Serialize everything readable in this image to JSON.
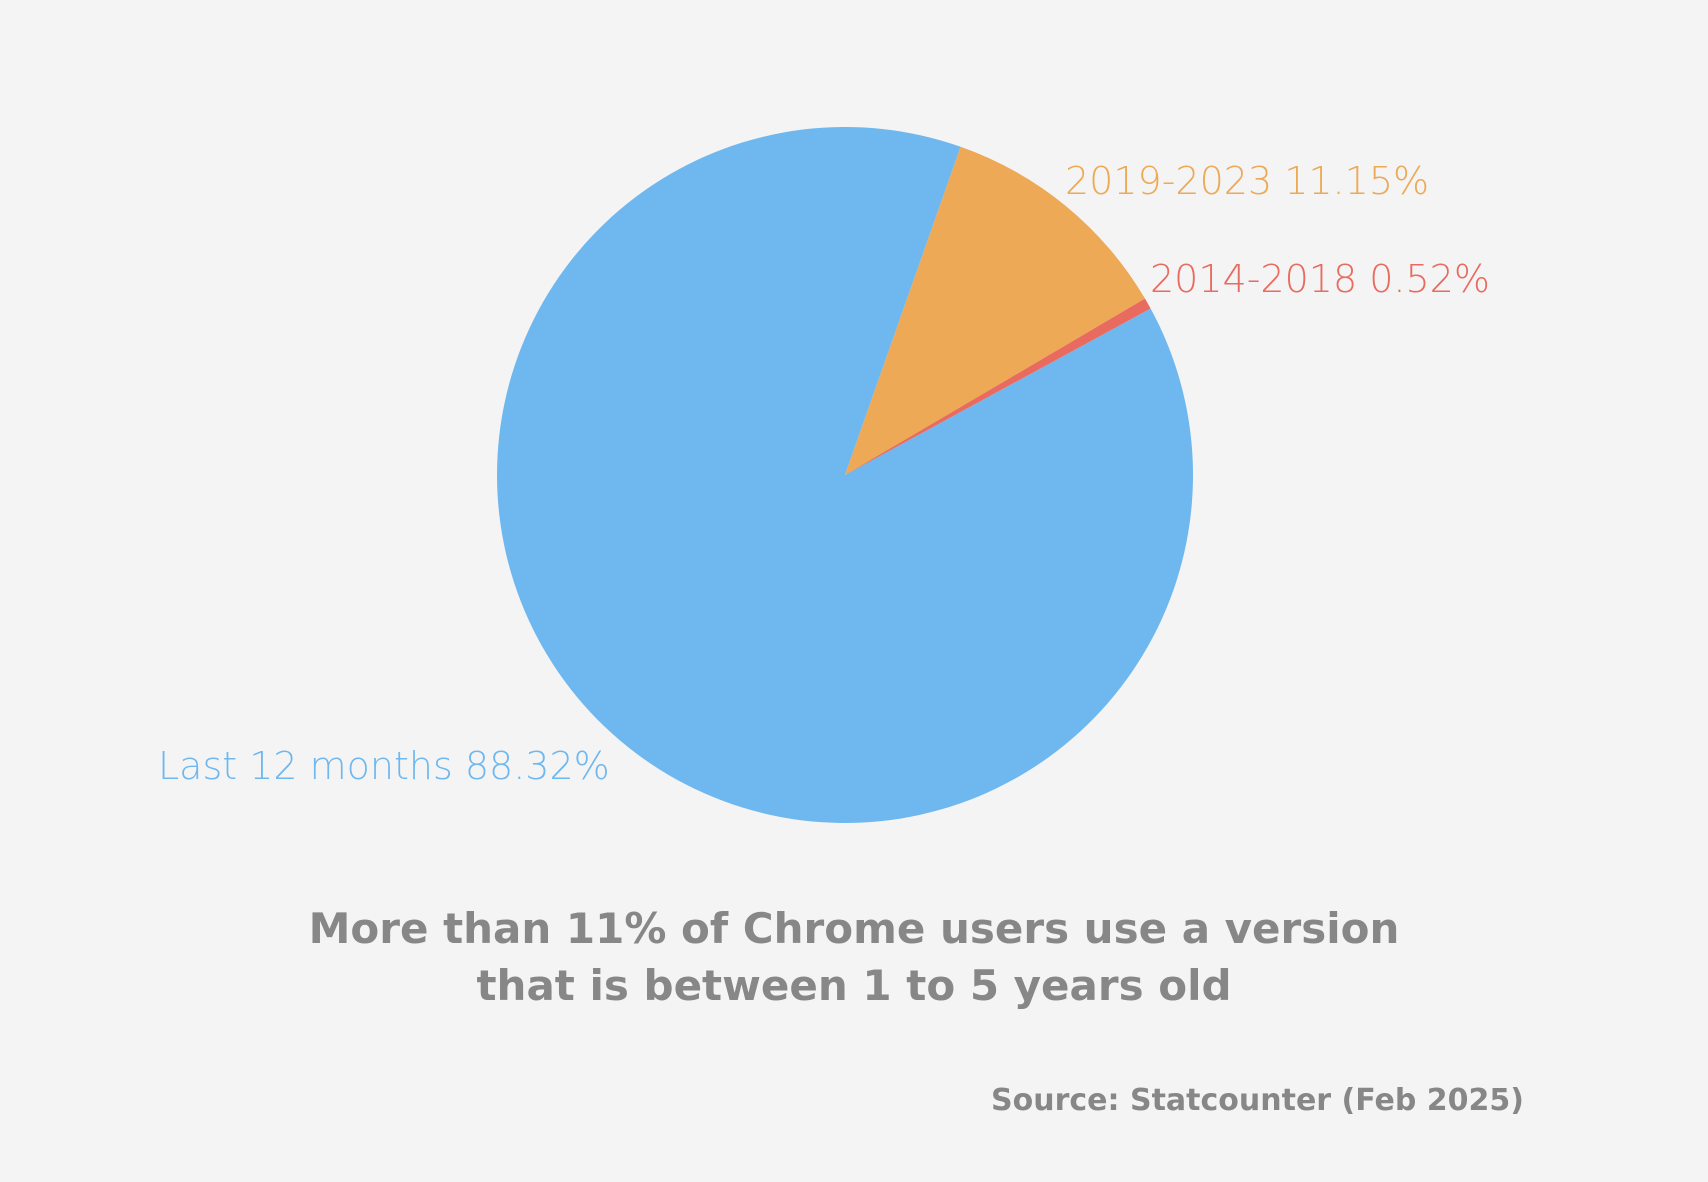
{
  "chart_data": {
    "type": "pie",
    "slices": [
      {
        "label": "Last 12 months 88.32%",
        "category": "Last 12 months",
        "value": 88.32,
        "color": "#6eb8ef"
      },
      {
        "label": "2019-2023 11.15%",
        "category": "2019-2023",
        "value": 11.15,
        "color": "#eda955"
      },
      {
        "label": "2014-2018 0.52%",
        "category": "2014-2018",
        "value": 0.52,
        "color": "#e96a5e"
      }
    ],
    "title_lines": [
      "More than 11% of Chrome users use a version",
      "that is between 1 to 5 years old"
    ],
    "source": "Source: Statcounter (Feb 2025)"
  }
}
